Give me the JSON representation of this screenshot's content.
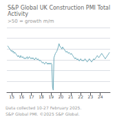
{
  "chart_data": {
    "type": "line",
    "title": "S&P Global UK Construction PMI Total Activity",
    "subtitle": ">50 = growth m/m",
    "annotations": [
      "Data collected 10-27 February 2025.",
      "S&P Global PMI. ©2025 S&P Global."
    ],
    "color": "#6baaba",
    "x": [
      14.58,
      14.6535,
      14.7271,
      14.8006,
      14.8742,
      14.9477,
      15.0213,
      15.0948,
      15.1684,
      15.2419,
      15.3155,
      15.389,
      15.4626,
      15.5361,
      15.6096,
      15.6832,
      15.7567,
      15.8303,
      15.9038,
      15.9774,
      16.0509,
      16.1245,
      16.198,
      16.2716,
      16.3451,
      16.4187,
      16.4922,
      16.5657,
      16.6393,
      16.7128,
      16.7864,
      16.8599,
      16.9335,
      17.007,
      17.0806,
      17.1541,
      17.2277,
      17.3012,
      17.3748,
      17.4483,
      17.5218,
      17.5954,
      17.6689,
      17.7425,
      17.816,
      17.8896,
      17.9631,
      18.0367,
      18.1102,
      18.1838,
      18.2573,
      18.3309,
      18.4044,
      18.4779,
      18.5515,
      18.625,
      18.6986,
      18.7721,
      18.8457,
      18.9192,
      18.9928,
      19.0663,
      19.1399,
      19.2134,
      19.287,
      19.3605,
      19.434,
      19.5076,
      19.5811,
      19.6547,
      19.7282,
      19.8018,
      19.8753,
      19.9489,
      20.0224,
      20.096,
      20.1695,
      20.243,
      20.3166,
      20.3901,
      20.4637,
      20.5372,
      20.6108,
      20.6843,
      20.7579,
      20.8314,
      20.905,
      20.9785,
      21.0521,
      21.1256,
      21.1991,
      21.2727,
      21.3462,
      21.4198,
      21.4933,
      21.5669,
      21.6404,
      21.714,
      21.7875,
      21.8611,
      21.9346,
      22.0082,
      22.0817,
      22.1552,
      22.2288,
      22.3023,
      22.3759,
      22.4494,
      22.523,
      22.5965,
      22.6701,
      22.7436,
      22.8172,
      22.8907,
      22.9643,
      23.0378,
      23.1113,
      23.1849,
      23.2584,
      23.332,
      23.4055,
      23.4791,
      23.5526,
      23.6262,
      23.6997,
      23.7733,
      23.8468,
      23.9204,
      23.9939,
      24.0674,
      24.141,
      24.2145,
      24.2881,
      24.3616,
      24.4352,
      24.5087,
      24.5823,
      24.6558,
      24.7294,
      24.8029,
      24.8765,
      24.95
    ],
    "values": [
      63,
      62,
      61,
      60,
      59,
      58,
      59,
      57,
      58,
      56,
      57,
      56,
      55,
      54,
      53,
      54,
      53,
      52,
      54,
      53,
      52,
      53,
      52,
      51,
      52,
      51,
      52,
      53,
      51,
      52,
      53,
      52,
      51,
      52,
      51,
      52,
      51,
      50,
      51,
      52,
      51,
      50,
      51,
      50,
      49,
      50,
      49,
      48,
      47,
      48,
      47,
      46,
      47,
      48,
      47,
      46,
      47,
      46,
      47,
      46,
      47,
      46,
      25,
      22,
      52,
      54,
      56,
      57,
      58,
      60,
      62,
      65,
      63,
      62,
      61,
      60,
      62,
      61,
      60,
      59,
      58,
      57,
      58,
      57,
      56,
      57,
      56,
      55,
      56,
      55,
      54,
      53,
      52,
      51,
      52,
      51,
      50,
      51,
      50,
      49,
      50,
      51,
      50,
      49,
      50,
      49,
      50,
      51,
      50,
      49,
      48,
      49,
      50,
      51,
      50,
      49,
      48,
      49,
      50,
      51,
      50,
      51,
      52,
      53,
      54,
      53,
      52,
      53,
      54,
      55,
      56,
      55,
      54,
      53,
      52,
      51,
      52,
      53,
      54,
      55,
      56,
      57
    ],
    "xlim": [
      14.5,
      25.0
    ],
    "xticks": [
      15,
      16,
      17,
      18,
      19,
      20,
      21,
      22,
      23,
      24
    ],
    "ylim": [
      20,
      80
    ],
    "yticks": [
      20,
      30,
      40,
      50,
      60,
      70,
      80
    ],
    "tick_labels": "x",
    "grid": true
  }
}
